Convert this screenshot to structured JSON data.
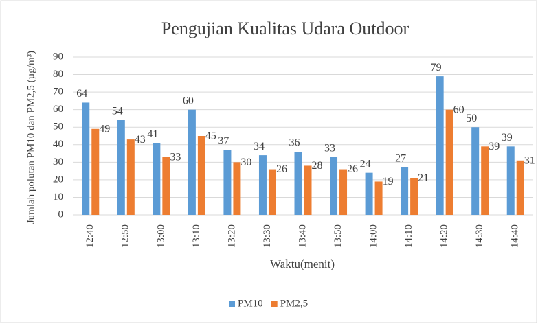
{
  "chart_data": {
    "type": "bar",
    "title": "Pengujian Kualitas Udara Outdoor",
    "x_label": "Waktu(menit)",
    "y_label": "Jumlah polutan PM10 dan PM2,5 (µg/m³)",
    "categories": [
      "12:40",
      "12:50",
      "13:00",
      "13:10",
      "13:20",
      "13:30",
      "13:40",
      "13:50",
      "14:00",
      "14:10",
      "14:20",
      "14:30",
      "14:40"
    ],
    "series": [
      {
        "name": "PM10",
        "color": "#5b9bd5",
        "values": [
          64,
          54,
          41,
          60,
          37,
          34,
          36,
          33,
          24,
          27,
          79,
          50,
          39
        ]
      },
      {
        "name": "PM2,5",
        "color": "#ed7d31",
        "values": [
          49,
          43,
          33,
          45,
          30,
          26,
          28,
          26,
          19,
          21,
          60,
          39,
          31
        ]
      }
    ],
    "ylim": [
      0,
      90
    ],
    "yticks": [
      0,
      10,
      20,
      30,
      40,
      50,
      60,
      70,
      80,
      90
    ],
    "grid": true,
    "legend": "bottom"
  }
}
